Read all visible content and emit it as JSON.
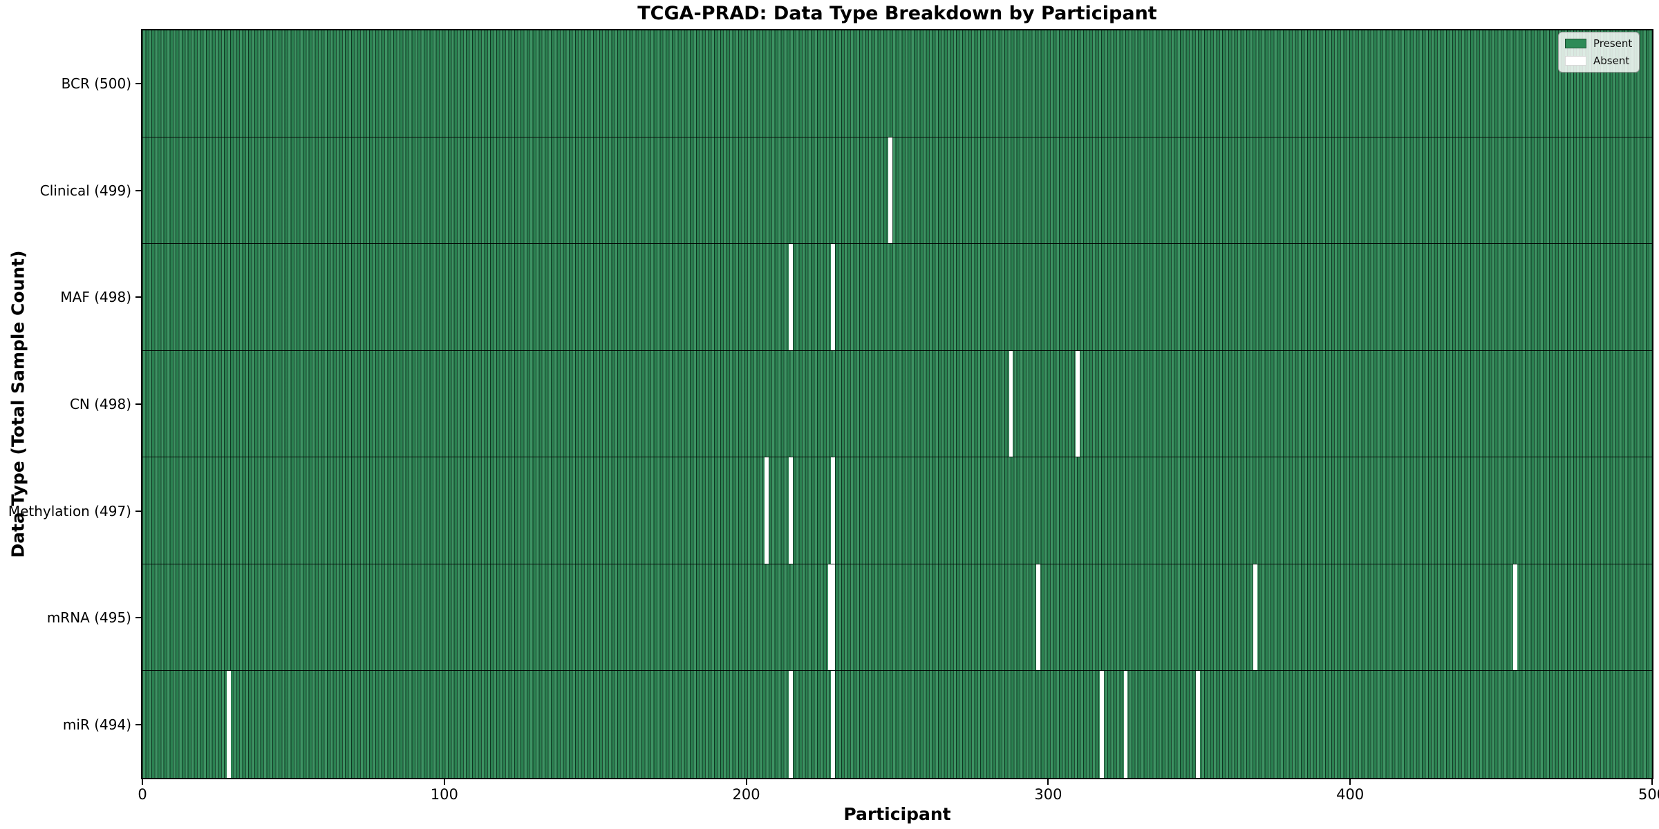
{
  "chart_data": {
    "type": "heatmap",
    "title": "TCGA-PRAD: Data Type Breakdown by Participant",
    "xlabel": "Participant",
    "ylabel": "Data Type (Total Sample Count)",
    "x_range": [
      0,
      500
    ],
    "x_ticks": [
      0,
      100,
      200,
      300,
      400,
      500
    ],
    "n_participants": 500,
    "grid": false,
    "colors": {
      "present": "#2e8b57",
      "absent": "#ffffff",
      "cell_edge": "#0b2c1b",
      "row_separator": "#000000",
      "plot_border": "#000000"
    },
    "legend": {
      "position": "upper right",
      "entries": [
        {
          "label": "Present",
          "color": "#2e8b57"
        },
        {
          "label": "Absent",
          "color": "#ffffff"
        }
      ]
    },
    "rows": [
      {
        "data_type": "BCR",
        "total_samples": 500,
        "label": "BCR (500)",
        "absent_participants": []
      },
      {
        "data_type": "Clinical",
        "total_samples": 499,
        "label": "Clinical (499)",
        "absent_participants": [
          247
        ]
      },
      {
        "data_type": "MAF",
        "total_samples": 498,
        "label": "MAF (498)",
        "absent_participants": [
          214,
          228
        ]
      },
      {
        "data_type": "CN",
        "total_samples": 498,
        "label": "CN (498)",
        "absent_participants": [
          287,
          309
        ]
      },
      {
        "data_type": "Methylation",
        "total_samples": 497,
        "label": "Methylation (497)",
        "absent_participants": [
          206,
          214,
          228
        ]
      },
      {
        "data_type": "mRNA",
        "total_samples": 495,
        "label": "mRNA (495)",
        "absent_participants": [
          227,
          228,
          296,
          368,
          454
        ]
      },
      {
        "data_type": "miR",
        "total_samples": 494,
        "label": "miR (494)",
        "absent_participants": [
          28,
          214,
          228,
          317,
          325,
          349
        ]
      }
    ]
  }
}
